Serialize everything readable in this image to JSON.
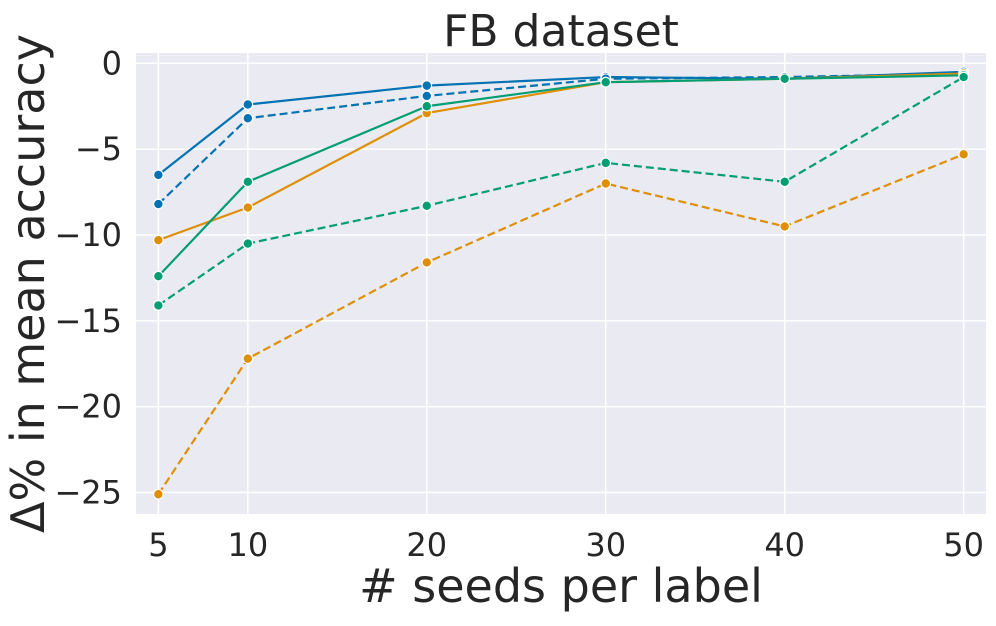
{
  "chart_data": {
    "type": "line",
    "title": "FB dataset",
    "xlabel": "# seeds per label",
    "ylabel": "Δ% in mean accuracy",
    "x": [
      5,
      10,
      20,
      30,
      40,
      50
    ],
    "xticks": [
      "5",
      "10",
      "20",
      "30",
      "40",
      "50"
    ],
    "yticks": [
      0,
      -5,
      -10,
      -15,
      -20,
      -25
    ],
    "ytick_labels": [
      "0",
      "−5",
      "−10",
      "−15",
      "−20",
      "−25"
    ],
    "xlim": [
      3.75,
      51.25
    ],
    "ylim": [
      -26.25,
      0.6
    ],
    "grid": true,
    "background": "#eaeaf2",
    "series": [
      {
        "color": "#0173b2",
        "dash": "solid",
        "values": [
          -6.5,
          -2.4,
          -1.3,
          -0.8,
          -0.9,
          -0.5
        ]
      },
      {
        "color": "#0173b2",
        "dash": "dashed",
        "values": [
          -8.2,
          -3.2,
          -1.9,
          -0.9,
          -0.8,
          -0.6
        ]
      },
      {
        "color": "#de8f05",
        "dash": "solid",
        "values": [
          -10.3,
          -8.4,
          -2.9,
          -1.1,
          -0.9,
          -0.6
        ]
      },
      {
        "color": "#de8f05",
        "dash": "dashed",
        "values": [
          -25.1,
          -17.2,
          -11.6,
          -7.0,
          -9.5,
          -5.3
        ]
      },
      {
        "color": "#029e73",
        "dash": "solid",
        "values": [
          -12.4,
          -6.9,
          -2.5,
          -1.1,
          -0.9,
          -0.7
        ]
      },
      {
        "color": "#029e73",
        "dash": "dashed",
        "values": [
          -14.1,
          -10.5,
          -8.3,
          -5.8,
          -6.9,
          -0.8
        ]
      }
    ]
  }
}
